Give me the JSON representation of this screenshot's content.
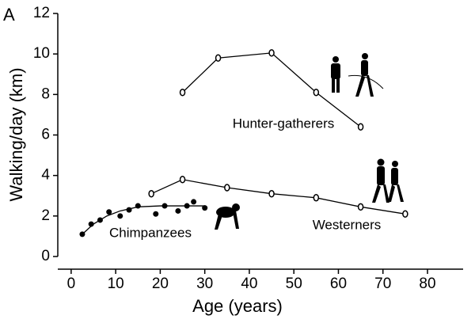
{
  "chart_data": {
    "type": "line",
    "panel_label": "A",
    "x_label": "Age (years)",
    "y_label": "Walking/day (km)",
    "xlim": [
      -3,
      88
    ],
    "ylim": [
      0,
      12
    ],
    "xticks": [
      0,
      10,
      20,
      30,
      40,
      50,
      60,
      70,
      80
    ],
    "yticks": [
      0,
      2,
      4,
      6,
      8,
      10,
      12
    ],
    "series": [
      {
        "name": "Hunter-gatherers",
        "color": "#000000",
        "marker": "open",
        "line": true,
        "x": [
          25,
          33,
          45,
          55,
          65
        ],
        "values": [
          8.1,
          9.8,
          10.05,
          8.1,
          6.4
        ]
      },
      {
        "name": "Westerners",
        "color": "#000000",
        "marker": "open",
        "line": true,
        "x": [
          18,
          25,
          35,
          45,
          55,
          65,
          75
        ],
        "values": [
          3.1,
          3.8,
          3.4,
          3.1,
          2.9,
          2.45,
          2.1
        ]
      },
      {
        "name": "Chimpanzees",
        "color": "#000000",
        "marker": "filled",
        "line": false,
        "x": [
          2.5,
          4.5,
          6.5,
          8.5,
          11,
          13,
          15,
          19,
          21,
          24,
          26,
          27.5,
          30
        ],
        "values": [
          1.1,
          1.6,
          1.8,
          2.2,
          2.0,
          2.3,
          2.5,
          2.1,
          2.5,
          2.25,
          2.5,
          2.7,
          2.4
        ]
      },
      {
        "color": "#000000",
        "marker": "none",
        "line": true,
        "x": [
          2.5,
          5,
          8,
          11,
          15,
          20,
          25,
          30
        ],
        "values": [
          1.1,
          1.6,
          2.0,
          2.25,
          2.45,
          2.5,
          2.5,
          2.5
        ]
      }
    ]
  }
}
